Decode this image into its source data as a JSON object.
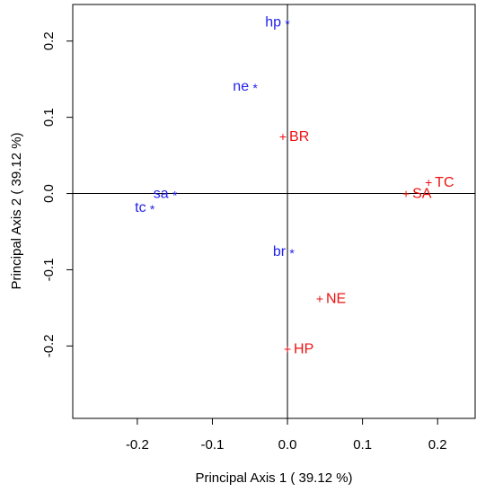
{
  "chart_data": {
    "type": "scatter",
    "title": "",
    "xlabel": "Principal Axis 1 ( 39.12 %)",
    "ylabel": "Principal Axis 2 ( 39.12 %)",
    "xlim": [
      -0.286,
      0.25
    ],
    "ylim": [
      -0.295,
      0.248
    ],
    "x_ticks": [
      -0.2,
      -0.1,
      0.0,
      0.1,
      0.2
    ],
    "x_tick_labels": [
      "-0.2",
      "-0.1",
      "0.0",
      "0.1",
      "0.2"
    ],
    "y_ticks": [
      -0.2,
      -0.1,
      0.0,
      0.1,
      0.2
    ],
    "y_tick_labels": [
      "-0.2",
      "-0.1",
      "0.0",
      "0.1",
      "0.2"
    ],
    "reference_lines": {
      "x": 0,
      "y": 0
    },
    "grid": false,
    "legend": "none",
    "series": [
      {
        "marker": "*",
        "color": "#2222ee",
        "label_side": "left",
        "points": [
          {
            "label": "hp",
            "x": 0.0,
            "y": 0.225
          },
          {
            "label": "ne",
            "x": -0.043,
            "y": 0.141
          },
          {
            "label": "sa",
            "x": -0.15,
            "y": 0.0
          },
          {
            "label": "tc",
            "x": -0.18,
            "y": -0.018
          },
          {
            "label": "br",
            "x": 0.006,
            "y": -0.076
          }
        ]
      },
      {
        "marker": "+",
        "color": "#ee1111",
        "label_side": "right",
        "points": [
          {
            "label": "BR",
            "x": -0.006,
            "y": 0.075
          },
          {
            "label": "TC",
            "x": 0.188,
            "y": 0.015
          },
          {
            "label": "SA",
            "x": 0.158,
            "y": 0.0
          },
          {
            "label": "NE",
            "x": 0.043,
            "y": -0.138
          },
          {
            "label": "HP",
            "x": 0.0,
            "y": -0.204
          }
        ]
      }
    ]
  }
}
